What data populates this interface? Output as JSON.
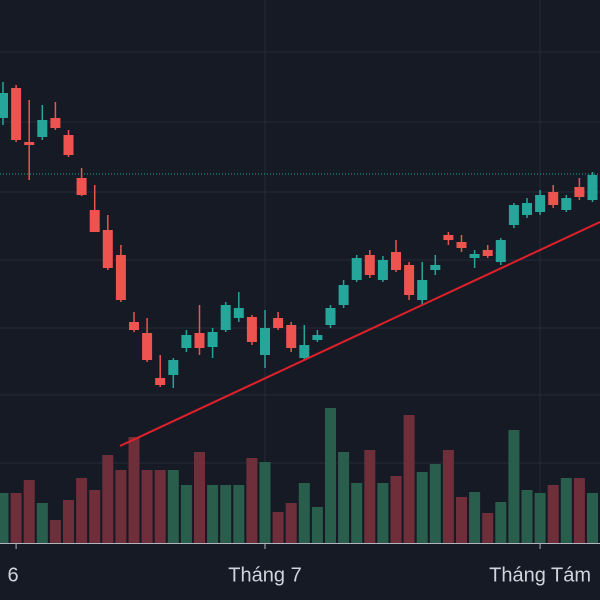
{
  "chart_data": {
    "type": "candlestick",
    "categories": [
      null,
      "6",
      null,
      null,
      null,
      null,
      null,
      null,
      null,
      null,
      null,
      null,
      null,
      null,
      null,
      null,
      null,
      null,
      null,
      null,
      "Tháng 7",
      null,
      null,
      null,
      null,
      null,
      null,
      null,
      null,
      null,
      null,
      null,
      null,
      null,
      null,
      null,
      null,
      null,
      null,
      null,
      null,
      "Tháng Tám",
      null,
      null,
      null,
      null
    ],
    "open": [
      482,
      512,
      458,
      463,
      482,
      465,
      422,
      390,
      370,
      345,
      278,
      267,
      222,
      225,
      252,
      267,
      253,
      270,
      282,
      283,
      245,
      282,
      275,
      242,
      260,
      275,
      295,
      320,
      345,
      320,
      348,
      335,
      300,
      330,
      365,
      358,
      342,
      350,
      338,
      375,
      385,
      388,
      408,
      390,
      413,
      400
    ],
    "high": [
      518,
      515,
      500,
      495,
      498,
      470,
      432,
      415,
      385,
      355,
      288,
      282,
      245,
      242,
      270,
      295,
      272,
      298,
      308,
      285,
      290,
      288,
      278,
      275,
      270,
      295,
      320,
      345,
      350,
      344,
      360,
      338,
      338,
      345,
      368,
      365,
      350,
      355,
      362,
      397,
      402,
      410,
      415,
      405,
      422,
      428
    ],
    "low": [
      475,
      458,
      420,
      460,
      470,
      443,
      404,
      368,
      330,
      298,
      268,
      238,
      213,
      212,
      248,
      245,
      242,
      268,
      278,
      255,
      232,
      270,
      248,
      240,
      258,
      272,
      292,
      318,
      322,
      318,
      328,
      300,
      295,
      325,
      355,
      348,
      332,
      342,
      335,
      372,
      382,
      385,
      392,
      388,
      400,
      398
    ],
    "close": [
      507,
      460,
      455,
      480,
      472,
      445,
      405,
      368,
      332,
      300,
      270,
      240,
      215,
      240,
      265,
      252,
      268,
      295,
      292,
      258,
      272,
      272,
      252,
      255,
      265,
      292,
      315,
      342,
      325,
      340,
      330,
      305,
      320,
      335,
      360,
      352,
      346,
      344,
      360,
      395,
      397,
      405,
      395,
      402,
      403,
      425
    ],
    "volume": [
      50,
      50,
      63,
      40,
      23,
      43,
      65,
      53,
      88,
      73,
      106,
      73,
      73,
      73,
      58,
      91,
      58,
      58,
      58,
      85,
      81,
      31,
      40,
      60,
      36,
      135,
      91,
      60,
      93,
      60,
      67,
      128,
      71,
      79,
      93,
      46,
      51,
      30,
      41,
      113,
      53,
      50,
      58,
      65,
      65,
      50
    ],
    "up_color": "#26a69a",
    "down_color": "#ef5350",
    "volume_up_color": "#2a5e4c",
    "volume_down_color": "#6e2f3a",
    "ylim": [
      0,
      600
    ]
  }
}
